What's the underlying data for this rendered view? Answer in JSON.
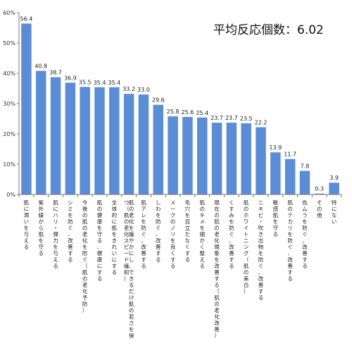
{
  "chart_data": {
    "type": "bar",
    "title": "平均反応個数：6.02",
    "xlabel": "",
    "ylabel": "",
    "ylim": [
      0,
      60
    ],
    "yticks": [
      "0%",
      "10%",
      "20%",
      "30%",
      "40%",
      "50%",
      "60%"
    ],
    "grid": false,
    "bar_color": "#5b8dd6",
    "categories": [
      "肌に潤いを与える",
      "紫外線から肌を守る",
      "肌にハリ・弾力を与える",
      "シミを防ぐ、改善する",
      "今後の肌の老化を防ぐ（肌の老化予防）",
      "肌の健康を守る、健康にする",
      "全体的に肌をきれいにする",
      "肌の老化を緩やかにし、できるだけ肌の若さを保つ（肌の老化スピード緩和）",
      "肌アレを防ぐ、改善する",
      "しわを防ぐ、改善する",
      "メークのノリを良くする",
      "毛穴を目立たなくする",
      "肌のキメを細かく整える",
      "現在の肌の老化現象を改善する（肌の老化改善）",
      "くすみを防ぐ、改善する",
      "肌のホワイトニング（肌の美白）",
      "ニキビ・吹き出物を防ぐ、改善する",
      "敏感肌を守る",
      "肌のテカリを防ぐ、改善する",
      "色ムラを防ぐ、改善する",
      "その他",
      "特にない"
    ],
    "values": [
      56.4,
      40.8,
      38.7,
      36.9,
      35.5,
      35.4,
      35.4,
      33.2,
      33.0,
      29.6,
      25.8,
      25.6,
      25.4,
      23.7,
      23.7,
      23.5,
      22.2,
      13.9,
      11.7,
      7.8,
      0.3,
      3.9
    ],
    "value_labels": [
      "56.4",
      "40.8",
      "38.7",
      "36.9",
      "35.5",
      "35.4",
      "35.4",
      "33.2",
      "33.0",
      "29.6",
      "25.8",
      "25.6",
      "25.4",
      "23.7",
      "23.7",
      "23.5",
      "22.2",
      "13.9",
      "11.7",
      "7.8",
      "0.3",
      "3.9"
    ]
  }
}
